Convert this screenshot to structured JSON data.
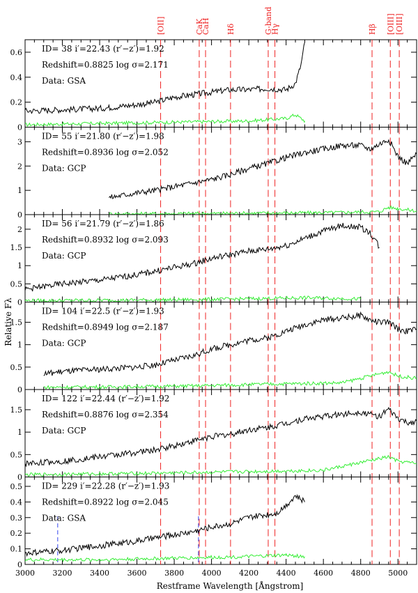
{
  "chart_data": {
    "type": "line",
    "xlabel": "Restframe Wavelength [Ångstrom]",
    "ylabel": "Relative Fλ",
    "xlim": [
      3000,
      5100
    ],
    "x_ticks": [
      "3000",
      "3200",
      "3400",
      "3600",
      "3800",
      "4000",
      "4200",
      "4400",
      "4600",
      "4800",
      "5000"
    ],
    "line_markers": [
      {
        "label": "[OII]",
        "x": 3727
      },
      {
        "label": "CaK",
        "x": 3934
      },
      {
        "label": "CaH",
        "x": 3968
      },
      {
        "label": "Hδ",
        "x": 4102
      },
      {
        "label": "G-band",
        "x": 4304
      },
      {
        "label": "Hγ",
        "x": 4340
      },
      {
        "label": "Hβ",
        "x": 4861
      },
      {
        "label": "[OIII]",
        "x": 4959
      },
      {
        "label": "[OIII]",
        "x": 5007
      }
    ],
    "colors": {
      "spectrum": "#000000",
      "error": "#33ee33",
      "marker": "#ee2222",
      "extra": "#3344ee"
    },
    "panels": [
      {
        "id_text": "ID= 38",
        "mag_text": "i′=22.43",
        "color_text": "(r′−z′)=1.92",
        "redshift_text": "Redshift=0.8825",
        "sigma_text": "log σ=2.171",
        "source_text": "Data: GSA",
        "ylim": [
          0,
          0.7
        ],
        "y_ticks": [
          "0",
          "0.2",
          "0.4",
          "0.6"
        ],
        "spectrum": {
          "x": [
            3000,
            3200,
            3400,
            3600,
            3700,
            3800,
            3900,
            4000,
            4100,
            4200,
            4300,
            4400,
            4450,
            4480,
            4500
          ],
          "y": [
            0.13,
            0.14,
            0.15,
            0.18,
            0.2,
            0.24,
            0.26,
            0.28,
            0.3,
            0.3,
            0.31,
            0.3,
            0.35,
            0.5,
            0.68
          ]
        },
        "error": {
          "x": [
            3000,
            3400,
            3800,
            4200,
            4400,
            4450,
            4500
          ],
          "y": [
            0.02,
            0.03,
            0.04,
            0.05,
            0.07,
            0.1,
            0.05
          ]
        },
        "extra_markers": []
      },
      {
        "id_text": "ID= 55",
        "mag_text": "i′=21.80",
        "color_text": "(r′−z′)=1.98",
        "redshift_text": "Redshift=0.8936",
        "sigma_text": "log σ=2.052",
        "source_text": "Data: GCP",
        "ylim": [
          0,
          3.6
        ],
        "y_ticks": [
          "0",
          "1",
          "2",
          "3"
        ],
        "spectrum": {
          "x": [
            3450,
            3600,
            3700,
            3800,
            3900,
            4000,
            4100,
            4200,
            4300,
            4400,
            4500,
            4600,
            4700,
            4800,
            4850,
            4900,
            4950,
            5000,
            5050,
            5100
          ],
          "y": [
            0.7,
            0.9,
            1.0,
            1.15,
            1.3,
            1.45,
            1.65,
            1.9,
            2.1,
            2.35,
            2.55,
            2.7,
            2.85,
            2.85,
            2.7,
            2.9,
            3.1,
            2.4,
            2.1,
            2.5
          ]
        },
        "error": {
          "x": [
            3450,
            3800,
            4200,
            4600,
            4900,
            4950,
            5000,
            5100
          ],
          "y": [
            0.03,
            0.04,
            0.06,
            0.08,
            0.12,
            0.3,
            0.25,
            0.15
          ]
        },
        "extra_markers": []
      },
      {
        "id_text": "ID= 56",
        "mag_text": "i′=21.79",
        "color_text": "(r′−z′)=1.86",
        "redshift_text": "Redshift=0.8932",
        "sigma_text": "log σ=2.093",
        "source_text": "Data: GCP",
        "ylim": [
          0,
          2.4
        ],
        "y_ticks": [
          "0",
          "0.5",
          "1",
          "1.5",
          "2"
        ],
        "spectrum": {
          "x": [
            3000,
            3200,
            3400,
            3600,
            3700,
            3800,
            3900,
            4000,
            4100,
            4200,
            4300,
            4400,
            4500,
            4600,
            4700,
            4800,
            4850,
            4880,
            4900
          ],
          "y": [
            0.35,
            0.5,
            0.6,
            0.75,
            0.85,
            0.95,
            1.05,
            1.2,
            1.3,
            1.4,
            1.45,
            1.55,
            1.75,
            1.95,
            2.1,
            2.05,
            1.9,
            1.7,
            1.5
          ]
        },
        "error": {
          "x": [
            3000,
            3400,
            3800,
            4200,
            4500,
            4700,
            4800
          ],
          "y": [
            0.04,
            0.05,
            0.06,
            0.09,
            0.12,
            0.1,
            0.08
          ]
        },
        "extra_markers": []
      },
      {
        "id_text": "ID= 104",
        "mag_text": "i′=22.5",
        "color_text": "(r′−z′)=1.93",
        "redshift_text": "Redshift=0.8949",
        "sigma_text": "log σ=2.187",
        "source_text": "Data: GCP",
        "ylim": [
          0,
          1.95
        ],
        "y_ticks": [
          "0",
          "0.5",
          "1",
          "1.5"
        ],
        "spectrum": {
          "x": [
            3100,
            3200,
            3400,
            3600,
            3700,
            3800,
            3900,
            4000,
            4100,
            4200,
            4300,
            4400,
            4500,
            4600,
            4700,
            4800,
            4850,
            4900,
            4950,
            5000,
            5050,
            5100
          ],
          "y": [
            0.35,
            0.4,
            0.45,
            0.5,
            0.55,
            0.65,
            0.75,
            0.9,
            1.0,
            1.1,
            1.15,
            1.3,
            1.45,
            1.55,
            1.6,
            1.65,
            1.55,
            1.5,
            1.5,
            1.35,
            1.3,
            1.35
          ]
        },
        "error": {
          "x": [
            3100,
            3500,
            3900,
            4300,
            4700,
            4950,
            5000,
            5100
          ],
          "y": [
            0.05,
            0.06,
            0.08,
            0.12,
            0.15,
            0.4,
            0.3,
            0.25
          ]
        },
        "extra_markers": []
      },
      {
        "id_text": "ID= 122",
        "mag_text": "i′=22.44",
        "color_text": "(r′−z′)=1.92",
        "redshift_text": "Redshift=0.8876",
        "sigma_text": "log σ=2.354",
        "source_text": "Data: GCP",
        "ylim": [
          0,
          1.95
        ],
        "y_ticks": [
          "0",
          "0.5",
          "1",
          "1.5"
        ],
        "spectrum": {
          "x": [
            3000,
            3200,
            3400,
            3600,
            3700,
            3800,
            3900,
            4000,
            4100,
            4200,
            4300,
            4400,
            4500,
            4600,
            4700,
            4800,
            4850,
            4900,
            4950,
            5000,
            5050,
            5100
          ],
          "y": [
            0.3,
            0.35,
            0.45,
            0.55,
            0.6,
            0.7,
            0.8,
            0.9,
            0.95,
            1.05,
            1.1,
            1.2,
            1.3,
            1.35,
            1.4,
            1.45,
            1.4,
            1.35,
            1.5,
            1.3,
            1.2,
            1.25
          ]
        },
        "error": {
          "x": [
            3000,
            3400,
            3800,
            4200,
            4600,
            4950,
            5000,
            5100
          ],
          "y": [
            0.05,
            0.07,
            0.09,
            0.12,
            0.15,
            0.45,
            0.35,
            0.3
          ]
        },
        "extra_markers": []
      },
      {
        "id_text": "ID= 229",
        "mag_text": "i′=22.28",
        "color_text": "(r′−z′)=1.93",
        "redshift_text": "Redshift=0.8922",
        "sigma_text": "log σ=2.045",
        "source_text": "Data: GSA",
        "ylim": [
          0,
          0.56
        ],
        "y_ticks": [
          "0",
          "0.1",
          "0.2",
          "0.3",
          "0.4",
          "0.5"
        ],
        "spectrum": {
          "x": [
            3000,
            3200,
            3400,
            3600,
            3700,
            3800,
            3900,
            4000,
            4100,
            4200,
            4300,
            4350,
            4400,
            4450,
            4500
          ],
          "y": [
            0.07,
            0.09,
            0.12,
            0.15,
            0.17,
            0.19,
            0.21,
            0.24,
            0.26,
            0.3,
            0.32,
            0.33,
            0.38,
            0.44,
            0.4
          ]
        },
        "error": {
          "x": [
            3000,
            3400,
            3800,
            4200,
            4400,
            4500
          ],
          "y": [
            0.03,
            0.03,
            0.04,
            0.05,
            0.06,
            0.05
          ]
        },
        "extra_markers": [
          {
            "x": 3175,
            "color": "#3344ee"
          },
          {
            "x": 3930,
            "color": "#3344ee"
          }
        ]
      }
    ]
  }
}
